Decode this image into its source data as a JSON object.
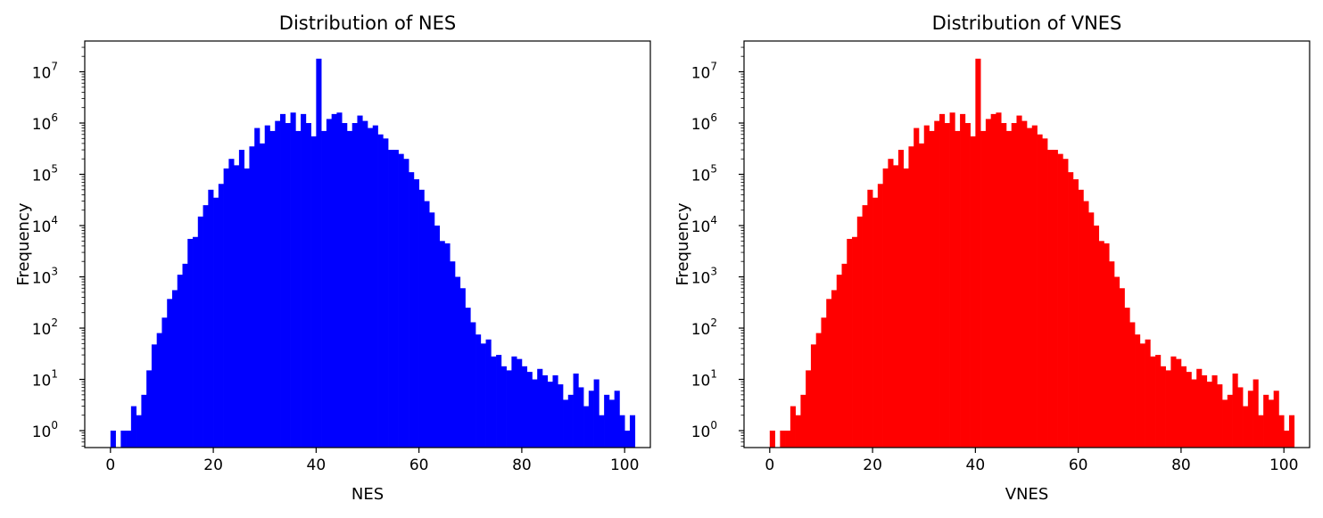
{
  "chart_data": [
    {
      "type": "bar",
      "title": "Distribution of NES",
      "xlabel": "NES",
      "ylabel": "Frequency",
      "color": "#0000ff",
      "yscale": "log",
      "xlim": [
        -5,
        105
      ],
      "ylim_exponent": [
        -0.33,
        7.6
      ],
      "x_ticks": [
        "0",
        "20",
        "40",
        "60",
        "80",
        "100"
      ],
      "y_ticks": [
        {
          "base": "10",
          "exp": "0"
        },
        {
          "base": "10",
          "exp": "1"
        },
        {
          "base": "10",
          "exp": "2"
        },
        {
          "base": "10",
          "exp": "3"
        },
        {
          "base": "10",
          "exp": "4"
        },
        {
          "base": "10",
          "exp": "5"
        },
        {
          "base": "10",
          "exp": "6"
        },
        {
          "base": "10",
          "exp": "7"
        }
      ],
      "bin_width": 1,
      "bin_start": 0,
      "values": [
        1,
        0,
        1,
        1,
        3,
        2,
        5,
        15,
        48,
        80,
        160,
        370,
        550,
        1100,
        1800,
        5500,
        6000,
        15000,
        25000,
        50000,
        35000,
        65000,
        130000,
        200000,
        150000,
        300000,
        130000,
        350000,
        800000,
        400000,
        900000,
        700000,
        1100000,
        1500000,
        1000000,
        1600000,
        700000,
        1500000,
        1000000,
        550000,
        18000000,
        700000,
        1200000,
        1500000,
        1600000,
        1000000,
        700000,
        1000000,
        1400000,
        1100000,
        800000,
        900000,
        600000,
        500000,
        300000,
        300000,
        250000,
        200000,
        110000,
        80000,
        50000,
        30000,
        18000,
        10000,
        5000,
        4500,
        2000,
        1000,
        600,
        250,
        130,
        75,
        50,
        60,
        28,
        30,
        18,
        15,
        28,
        25,
        18,
        14,
        10,
        16,
        12,
        9,
        12,
        8,
        4,
        5,
        13,
        7,
        3,
        6,
        10,
        2,
        5,
        4,
        6,
        2,
        1,
        2
      ]
    },
    {
      "type": "bar",
      "title": "Distribution of VNES",
      "xlabel": "VNES",
      "ylabel": "Frequency",
      "color": "#ff0000",
      "yscale": "log",
      "xlim": [
        -5,
        105
      ],
      "ylim_exponent": [
        -0.33,
        7.6
      ],
      "x_ticks": [
        "0",
        "20",
        "40",
        "60",
        "80",
        "100"
      ],
      "y_ticks": [
        {
          "base": "10",
          "exp": "0"
        },
        {
          "base": "10",
          "exp": "1"
        },
        {
          "base": "10",
          "exp": "2"
        },
        {
          "base": "10",
          "exp": "3"
        },
        {
          "base": "10",
          "exp": "4"
        },
        {
          "base": "10",
          "exp": "5"
        },
        {
          "base": "10",
          "exp": "6"
        },
        {
          "base": "10",
          "exp": "7"
        }
      ],
      "bin_width": 1,
      "bin_start": 0,
      "values": [
        1,
        0,
        1,
        1,
        3,
        2,
        5,
        15,
        48,
        80,
        160,
        370,
        550,
        1100,
        1800,
        5500,
        6000,
        15000,
        25000,
        50000,
        35000,
        65000,
        130000,
        200000,
        150000,
        300000,
        130000,
        350000,
        800000,
        400000,
        900000,
        700000,
        1100000,
        1500000,
        1000000,
        1600000,
        700000,
        1500000,
        1000000,
        550000,
        18000000,
        700000,
        1200000,
        1500000,
        1600000,
        1000000,
        700000,
        1000000,
        1400000,
        1100000,
        800000,
        900000,
        600000,
        500000,
        300000,
        300000,
        250000,
        200000,
        110000,
        80000,
        50000,
        30000,
        18000,
        10000,
        5000,
        4500,
        2000,
        1000,
        600,
        250,
        130,
        75,
        50,
        60,
        28,
        30,
        18,
        15,
        28,
        25,
        18,
        14,
        10,
        16,
        12,
        9,
        12,
        8,
        4,
        5,
        13,
        7,
        3,
        6,
        10,
        2,
        5,
        4,
        6,
        2,
        1,
        2
      ]
    }
  ]
}
